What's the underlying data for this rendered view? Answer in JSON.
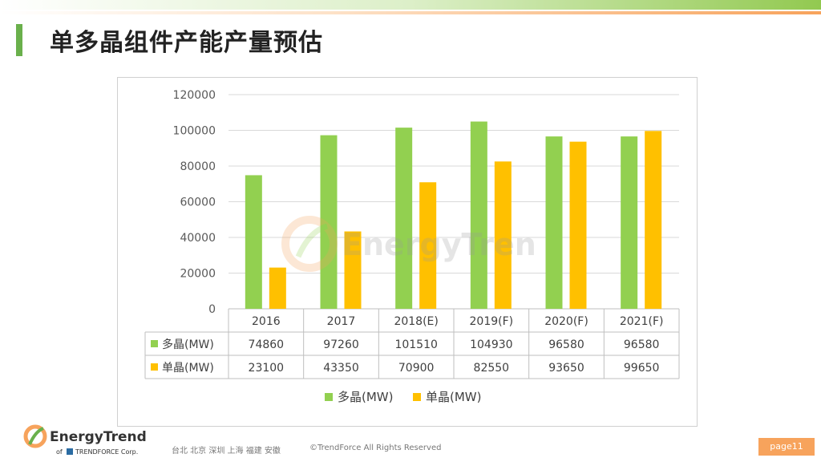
{
  "page": {
    "title": "单多晶组件产能产量预估",
    "page_label": "page11",
    "footer_cities": "台北  北京  深圳  上海  福建  安徽",
    "footer_copyright": "©TrendForce All Rights Reserved",
    "logo_text": "EnergyTrend",
    "logo_sub_prefix": "of",
    "logo_sub": "TRENDFORCE Corp.",
    "watermark_text": "EnergyTrend"
  },
  "colors": {
    "series_poly": "#92d050",
    "series_mono": "#ffc000",
    "accent_green": "#6ab04c",
    "accent_orange": "#f7a35c"
  },
  "chart_data": {
    "type": "bar",
    "categories": [
      "2016",
      "2017",
      "2018(E)",
      "2019(F)",
      "2020(F)",
      "2021(F)"
    ],
    "series": [
      {
        "name": "多晶(MW)",
        "values": [
          74860,
          97260,
          101510,
          104930,
          96580,
          96580
        ],
        "color": "#92d050"
      },
      {
        "name": "单晶(MW)",
        "values": [
          23100,
          43350,
          70900,
          82550,
          93650,
          99650
        ],
        "color": "#ffc000"
      }
    ],
    "yticks": [
      0,
      20000,
      40000,
      60000,
      80000,
      100000,
      120000
    ],
    "ylim": [
      0,
      120000
    ],
    "grid": true,
    "legend": "bottom",
    "table": true
  }
}
